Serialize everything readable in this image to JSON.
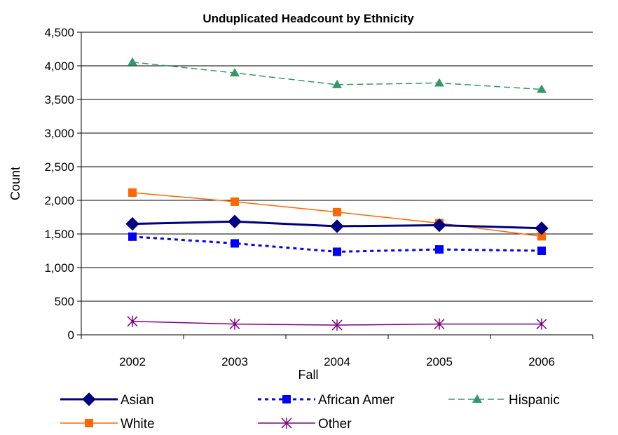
{
  "chart_data": {
    "type": "line",
    "title": "Unduplicated Headcount by Ethnicity",
    "xlabel": "Fall",
    "ylabel": "Count",
    "categories": [
      "2002",
      "2003",
      "2004",
      "2005",
      "2006"
    ],
    "ylim": [
      0,
      4500
    ],
    "yticks": [
      0,
      500,
      1000,
      1500,
      2000,
      2500,
      3000,
      3500,
      4000,
      4500
    ],
    "ytick_labels": [
      "0",
      "500",
      "1,000",
      "1,500",
      "2,000",
      "2,500",
      "3,000",
      "3,500",
      "4,000",
      "4,500"
    ],
    "grid": "horizontal",
    "legend_position": "bottom",
    "series": [
      {
        "name": "Asian",
        "values": [
          1650,
          1685,
          1615,
          1630,
          1585
        ],
        "color": "#000080",
        "dash": "solid",
        "marker": "diamond",
        "weight": "bold"
      },
      {
        "name": "African Amer",
        "values": [
          1460,
          1360,
          1235,
          1270,
          1250
        ],
        "color": "#0000FF",
        "dash": "dotted",
        "marker": "square"
      },
      {
        "name": "Hispanic",
        "values": [
          4055,
          3895,
          3720,
          3745,
          3650
        ],
        "color": "#339966",
        "dash": "dashed",
        "marker": "triangle"
      },
      {
        "name": "White",
        "values": [
          2115,
          1980,
          1825,
          1660,
          1465
        ],
        "color": "#FF6600",
        "dash": "solid",
        "marker": "square"
      },
      {
        "name": "Other",
        "values": [
          200,
          160,
          145,
          160,
          160
        ],
        "color": "#800080",
        "dash": "solid",
        "marker": "star"
      }
    ]
  }
}
